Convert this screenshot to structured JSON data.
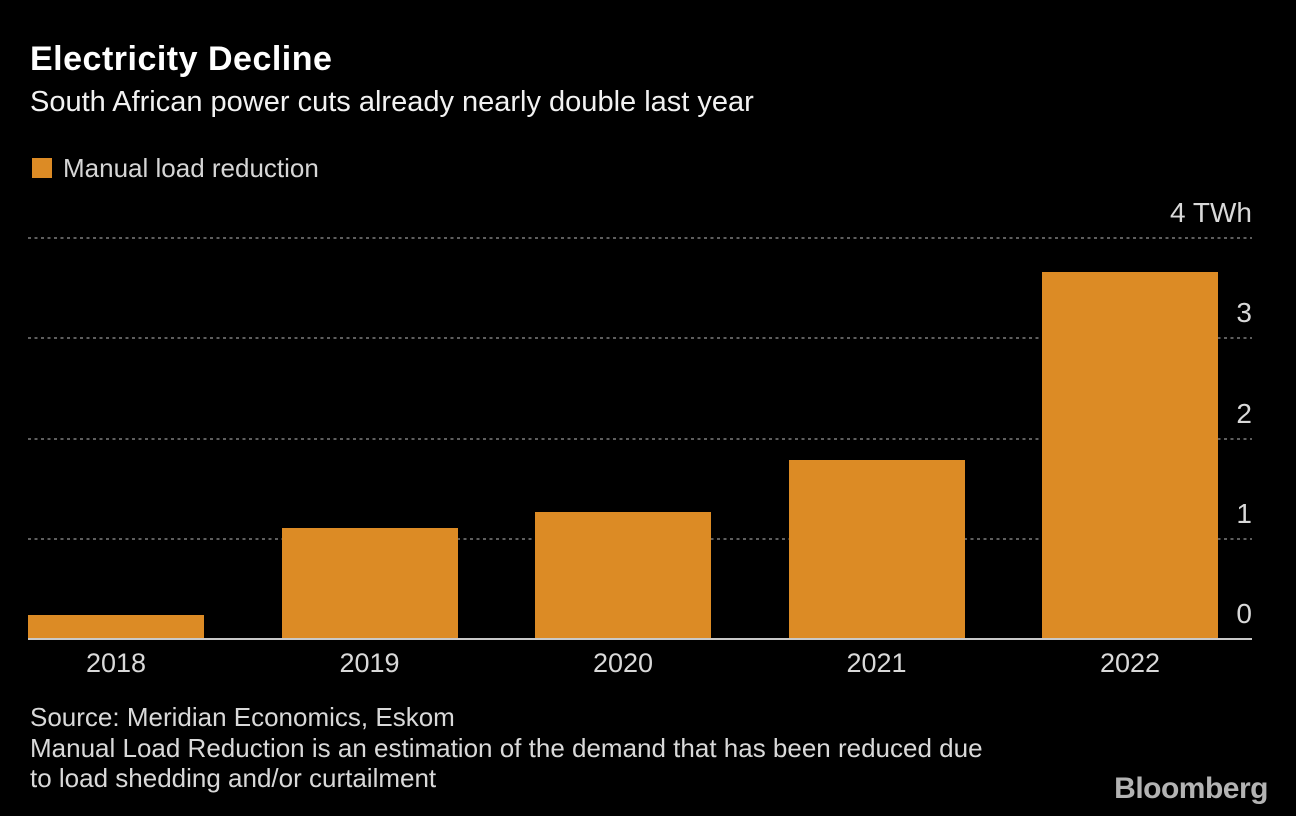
{
  "header": {
    "title": "Electricity Decline",
    "subtitle": "South African power cuts already nearly double last year"
  },
  "legend": {
    "label": "Manual load reduction",
    "swatch_color": "#dc8b25"
  },
  "chart_data": {
    "type": "bar",
    "title": "Electricity Decline",
    "subtitle": "South African power cuts already nearly double last year",
    "series_name": "Manual load reduction",
    "categories": [
      "2018",
      "2019",
      "2020",
      "2021",
      "2022"
    ],
    "values": [
      0.23,
      1.1,
      1.26,
      1.78,
      3.65
    ],
    "unit": "TWh",
    "ylabel": "TWh",
    "ylim": [
      0,
      4
    ],
    "yticks": [
      0,
      1,
      2,
      3,
      4
    ],
    "ytick_labels": [
      "0",
      "1",
      "2",
      "3",
      "4 TWh"
    ],
    "grid": "horizontal-dotted",
    "legend_position": "top-left",
    "bar_color": "#dc8b25",
    "background_color": "#000000"
  },
  "footer": {
    "source": "Source: Meridian Economics, Eskom",
    "note_lines": [
      "Manual Load Reduction is an estimation of the demand that has been reduced due",
      "to load shedding and/or curtailment"
    ]
  },
  "brand": {
    "label": "Bloomberg"
  },
  "colors": {
    "accent_orange": "#dc8b25",
    "background": "#000000",
    "title_text": "#ffffff",
    "body_text": "#d9d9d9",
    "gridline": "#5e5e5e",
    "axis_line": "#c9c9c9",
    "brand_text": "#b3b3b3"
  }
}
